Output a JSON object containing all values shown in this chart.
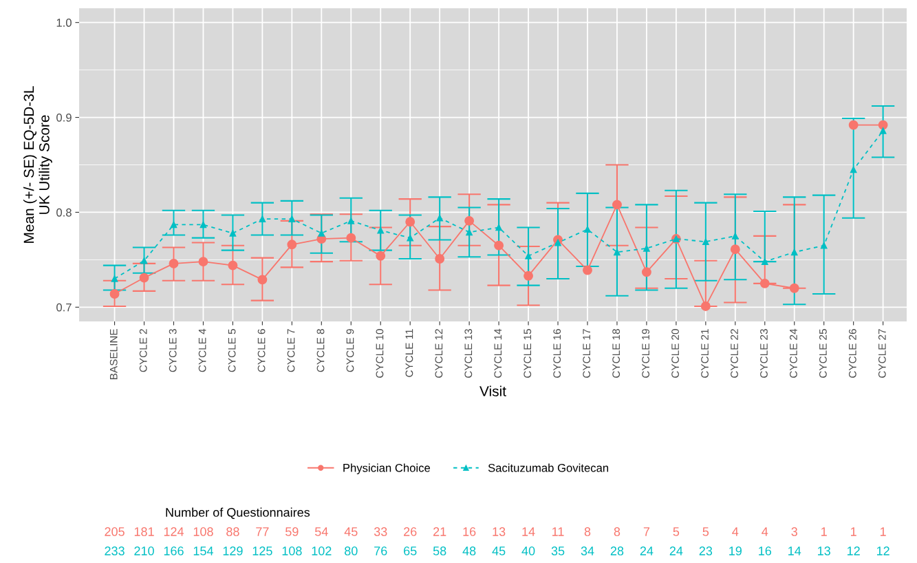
{
  "chart_data": {
    "type": "line",
    "xlabel": "Visit",
    "ylabel": "Mean (+/- SE) EQ-5D-3L\nUK Utility Score",
    "categories": [
      "BASELINE",
      "CYCLE 2",
      "CYCLE 3",
      "CYCLE 4",
      "CYCLE 5",
      "CYCLE 6",
      "CYCLE 7",
      "CYCLE 8",
      "CYCLE 9",
      "CYCLE 10",
      "CYCLE 11",
      "CYCLE 12",
      "CYCLE 13",
      "CYCLE 14",
      "CYCLE 15",
      "CYCLE 16",
      "CYCLE 17",
      "CYCLE 18",
      "CYCLE 19",
      "CYCLE 20",
      "CYCLE 21",
      "CYCLE 22",
      "CYCLE 23",
      "CYCLE 24",
      "CYCLE 25",
      "CYCLE 26",
      "CYCLE 27"
    ],
    "series": [
      {
        "name": "Physician Choice",
        "color": "#f8766d",
        "marker": "circle",
        "line_style": "solid",
        "values": [
          0.714,
          0.731,
          0.746,
          0.748,
          0.744,
          0.729,
          0.766,
          0.772,
          0.773,
          0.754,
          0.79,
          0.751,
          0.791,
          0.765,
          0.733,
          0.771,
          0.739,
          0.808,
          0.737,
          0.772,
          0.701,
          0.761,
          0.725,
          0.72,
          null,
          0.892,
          0.892
        ],
        "errors": [
          [
            0.701,
            0.728
          ],
          [
            0.717,
            0.746
          ],
          [
            0.728,
            0.763
          ],
          [
            0.728,
            0.768
          ],
          [
            0.724,
            0.765
          ],
          [
            0.707,
            0.752
          ],
          [
            0.742,
            0.791
          ],
          [
            0.748,
            0.798
          ],
          [
            0.749,
            0.798
          ],
          [
            0.724,
            0.784
          ],
          [
            0.765,
            0.814
          ],
          [
            0.718,
            0.785
          ],
          [
            0.765,
            0.819
          ],
          [
            0.723,
            0.808
          ],
          [
            0.702,
            0.764
          ],
          [
            0.73,
            0.81
          ],
          null,
          [
            0.765,
            0.85
          ],
          [
            0.72,
            0.784
          ],
          [
            0.73,
            0.817
          ],
          [
            0.701,
            0.749
          ],
          [
            0.705,
            0.816
          ],
          [
            0.725,
            0.775
          ],
          [
            0.72,
            0.808
          ],
          null,
          null,
          null
        ]
      },
      {
        "name": "Sacituzumab Govitecan",
        "color": "#00bfc4",
        "marker": "triangle",
        "line_style": "dashed",
        "values": [
          0.73,
          0.749,
          0.787,
          0.787,
          0.778,
          0.793,
          0.793,
          0.778,
          0.791,
          0.781,
          0.773,
          0.794,
          0.779,
          0.784,
          0.754,
          0.768,
          0.782,
          0.758,
          0.762,
          0.772,
          0.769,
          0.775,
          0.748,
          0.758,
          0.765,
          0.845,
          0.886
        ],
        "errors": [
          [
            0.718,
            0.744
          ],
          [
            0.736,
            0.763
          ],
          [
            0.776,
            0.802
          ],
          [
            0.773,
            0.802
          ],
          [
            0.76,
            0.797
          ],
          [
            0.776,
            0.81
          ],
          [
            0.776,
            0.812
          ],
          [
            0.757,
            0.797
          ],
          [
            0.769,
            0.815
          ],
          [
            0.76,
            0.802
          ],
          [
            0.751,
            0.797
          ],
          [
            0.771,
            0.816
          ],
          [
            0.753,
            0.805
          ],
          [
            0.755,
            0.814
          ],
          [
            0.723,
            0.784
          ],
          [
            0.73,
            0.804
          ],
          [
            0.743,
            0.82
          ],
          [
            0.712,
            0.805
          ],
          [
            0.718,
            0.808
          ],
          [
            0.72,
            0.823
          ],
          [
            0.728,
            0.81
          ],
          [
            0.729,
            0.819
          ],
          [
            0.748,
            0.801
          ],
          [
            0.703,
            0.816
          ],
          [
            0.714,
            0.818
          ],
          [
            0.794,
            0.899
          ],
          [
            0.858,
            0.912
          ]
        ]
      }
    ],
    "ylim": [
      0.685,
      1.015
    ],
    "yticks": [
      {
        "value": 0.7,
        "label": "0.7"
      },
      {
        "value": 0.8,
        "label": "0.8"
      },
      {
        "value": 0.9,
        "label": "0.9"
      },
      {
        "value": 1.0,
        "label": "1.0"
      }
    ],
    "grid": true,
    "legend": "bottom",
    "annotations": [
      "Number of Questionnaires",
      "205 181 124 108 88 77 59 54 45 33 26 21 16 13 14 11 8 8 7 5 5 4 4 3 1 1 1",
      "233 210 166 154 129 125 108 102 80 76 65 58 48 45 40 35 34 28 24 24 23 19 16 14 13 12 12"
    ]
  }
}
